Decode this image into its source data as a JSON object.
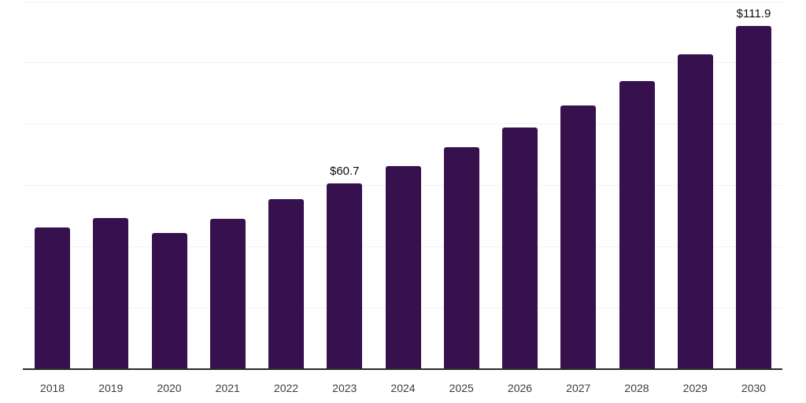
{
  "chart_meta": {
    "bar_color": "#36114E",
    "axis_line_color": "#2B2B2B",
    "gridline_color": "#F2F2F2",
    "tick_label_color": "#3C3C3C",
    "value_label_color": "#0D0D0D",
    "background_color": "#FFFFFF"
  },
  "chart_data": {
    "type": "bar",
    "title": "",
    "xlabel": "",
    "ylabel": "",
    "categories": [
      "2018",
      "2019",
      "2020",
      "2021",
      "2022",
      "2023",
      "2024",
      "2025",
      "2026",
      "2027",
      "2028",
      "2029",
      "2030"
    ],
    "values": [
      46.3,
      49.2,
      44.3,
      49.0,
      55.5,
      60.7,
      66.2,
      72.3,
      78.9,
      86.1,
      94.0,
      102.6,
      111.9
    ],
    "data_labels": [
      {
        "category": "2023",
        "text": "$60.7"
      },
      {
        "category": "2030",
        "text": "$111.9"
      }
    ],
    "ylim": [
      0,
      120
    ],
    "gridline_step": 20,
    "grid": "horizontal",
    "y_axis_tick_labels_visible": false,
    "legend": "none"
  }
}
